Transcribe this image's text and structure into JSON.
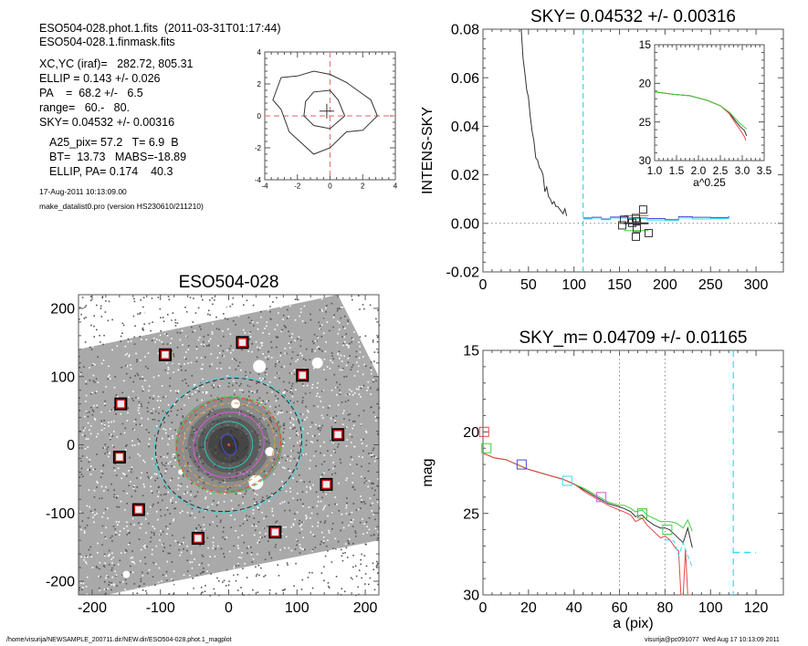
{
  "header": {
    "lines": [
      "ESO504-028.phot.1.fits  (2011-03-31T01:17:44)",
      "ESO504-028.1.finmask.fits"
    ],
    "params": [
      "XC,YC (iraf)=   282.72, 805.31",
      "ELLIP = 0.143 +/- 0.026",
      "PA    =  68.2 +/-   6.5",
      "range=   60.-   80.",
      "SKY= 0.04532 +/- 0.00316"
    ],
    "results": [
      "A25_pix= 57.2   T= 6.9  B",
      "BT=  13.73   MABS=-18.89",
      "ELLIP, PA= 0.174    40.3"
    ],
    "date": "17-Aug-2011 10:13:09.00",
    "program": "make_datalist0.pro (version HS230610/211210)"
  },
  "footer": {
    "path": "/home/visurija/NEWSAMPLE_200711.dir/NEW.dir/ESO504-028.phot.1_magplot",
    "user_stamp": "visurija@pc091077  Wed Aug 17 10:13:09 2011"
  },
  "colors": {
    "axis": "#555555",
    "black_line": "#333333",
    "red": "#e8444a",
    "green": "#3fd13f",
    "cyan": "#33dde8",
    "blue": "#4a4ad8",
    "magenta": "#d858d8",
    "orange": "#e0a040",
    "pink_dash": "#e88080",
    "teal": "#30c0b0",
    "dotted": "#888888",
    "square_red": "#cc1111"
  },
  "chart_data": [
    {
      "id": "center-contours",
      "type": "line",
      "title": "",
      "xlabel": "",
      "ylabel": "",
      "xlim": [
        -4,
        4
      ],
      "ylim": [
        -4,
        4
      ],
      "xticks": [
        -4,
        -2,
        0,
        2,
        4
      ],
      "yticks": [
        -4,
        -2,
        0,
        2,
        4
      ],
      "xtick_labels": [
        "-4",
        "-2",
        "0",
        "2",
        "4"
      ],
      "ytick_labels": [
        "-4",
        "-2",
        "0",
        "2",
        "4"
      ],
      "contours": [
        {
          "name": "outer",
          "points": [
            [
              -3.0,
              2.4
            ],
            [
              -2.0,
              2.5
            ],
            [
              -1.0,
              2.8
            ],
            [
              0.0,
              2.6
            ],
            [
              1.0,
              2.1
            ],
            [
              2.5,
              1.0
            ],
            [
              2.9,
              0.0
            ],
            [
              2.0,
              -0.9
            ],
            [
              1.0,
              -1.0
            ],
            [
              0.0,
              -2.0
            ],
            [
              -1.0,
              -2.4
            ],
            [
              -2.5,
              -1.0
            ],
            [
              -3.0,
              0.4
            ],
            [
              -3.5,
              1.0
            ],
            [
              -3.0,
              2.4
            ]
          ]
        },
        {
          "name": "inner",
          "points": [
            [
              -1.5,
              0.9
            ],
            [
              -1.0,
              1.5
            ],
            [
              0.0,
              1.6
            ],
            [
              0.5,
              1.0
            ],
            [
              0.9,
              0.0
            ],
            [
              0.0,
              -0.8
            ],
            [
              -1.0,
              -0.6
            ],
            [
              -1.6,
              0.0
            ],
            [
              -1.5,
              0.9
            ]
          ]
        }
      ],
      "crosshair": {
        "x": 0.0,
        "y": 0.0
      },
      "center_marker": {
        "x": -0.2,
        "y": 0.3
      }
    },
    {
      "id": "sky-profile",
      "type": "line",
      "title": "SKY= 0.04532 +/- 0.00316",
      "xlabel": "",
      "ylabel": "INTENS-SKY",
      "xlim": [
        0,
        330
      ],
      "ylim": [
        -0.02,
        0.08
      ],
      "xticks": [
        0,
        50,
        100,
        150,
        200,
        250,
        300
      ],
      "xtick_labels": [
        "0",
        "50",
        "100",
        "150",
        "200",
        "250",
        "300"
      ],
      "yticks": [
        -0.02,
        0.0,
        0.02,
        0.04,
        0.06,
        0.08
      ],
      "ytick_labels": [
        "-0.02",
        "0.00",
        "0.02",
        "0.04",
        "0.06",
        "0.08"
      ],
      "sky_radius_line": 110,
      "series": [
        {
          "name": "profile",
          "color": "black_line",
          "x": [
            42,
            44,
            46,
            48,
            50,
            52,
            54,
            56,
            58,
            60,
            62,
            64,
            66,
            68,
            70,
            72,
            74,
            76,
            78,
            80,
            82,
            84,
            86,
            88,
            90,
            92
          ],
          "y": [
            0.08,
            0.068,
            0.062,
            0.055,
            0.052,
            0.044,
            0.038,
            0.034,
            0.027,
            0.026,
            0.023,
            0.022,
            0.02,
            0.013,
            0.015,
            0.011,
            0.01,
            0.008,
            0.009,
            0.007,
            0.007,
            0.006,
            0.005,
            0.004,
            0.006,
            0.003
          ]
        },
        {
          "name": "sky-blue",
          "color": "blue",
          "x": [
            110,
            120,
            130,
            140,
            160,
            180,
            200,
            215,
            230,
            250,
            270
          ],
          "y": [
            0.0022,
            0.0025,
            0.0018,
            0.0026,
            0.0022,
            0.002,
            0.0015,
            0.0028,
            0.0025,
            0.0024,
            0.003
          ]
        },
        {
          "name": "sky-cyan",
          "color": "cyan",
          "x": [
            110,
            120,
            130,
            140,
            160,
            180,
            200,
            215,
            230,
            250,
            270
          ],
          "y": [
            0.0018,
            0.0022,
            0.0015,
            0.0022,
            0.002,
            0.0014,
            0.0012,
            0.0022,
            0.0018,
            0.002,
            0.0026
          ]
        }
      ],
      "sky_boxes": [
        [
          155,
          0.0015
        ],
        [
          153,
          -0.0008
        ],
        [
          164,
          0.0002
        ],
        [
          168,
          0.0022
        ],
        [
          169,
          0.0008
        ],
        [
          169,
          -0.002
        ],
        [
          176,
          0.0057
        ],
        [
          168,
          -0.0055
        ],
        [
          182,
          -0.004
        ]
      ],
      "error_lines": [
        {
          "color": "red",
          "x": [
            155,
            182
          ],
          "y": 0.0032
        },
        {
          "color": "black_line",
          "x": [
            155,
            182
          ],
          "y": 0.0
        },
        {
          "color": "green",
          "x": [
            155,
            182
          ],
          "y": -0.003
        }
      ]
    },
    {
      "id": "inset-profile",
      "type": "line",
      "title": "",
      "xlabel": "a^0.25",
      "ylabel": "",
      "xlim": [
        1.0,
        3.5
      ],
      "ylim": [
        30,
        15
      ],
      "xticks": [
        1.0,
        1.5,
        2.0,
        2.5,
        3.0,
        3.5
      ],
      "xtick_labels": [
        "1.0",
        "1.5",
        "2.0",
        "2.5",
        "3.0",
        "3.5"
      ],
      "yticks": [
        15,
        20,
        25,
        30
      ],
      "ytick_labels": [
        "15",
        "20",
        "25",
        "30"
      ],
      "series": [
        {
          "name": "black",
          "color": "black_line",
          "x": [
            1.0,
            1.4,
            1.8,
            2.2,
            2.5,
            2.7,
            2.85,
            2.95,
            3.05,
            3.1
          ],
          "y": [
            21.1,
            21.4,
            21.6,
            22.2,
            22.9,
            23.8,
            24.9,
            25.6,
            26.1,
            26.8
          ]
        },
        {
          "name": "red",
          "color": "red",
          "x": [
            1.0,
            1.4,
            1.8,
            2.2,
            2.5,
            2.7,
            2.85,
            2.95,
            3.05,
            3.08
          ],
          "y": [
            21.1,
            21.4,
            21.6,
            22.2,
            22.9,
            23.9,
            25.2,
            26.0,
            26.9,
            27.4
          ]
        },
        {
          "name": "green",
          "color": "green",
          "x": [
            1.0,
            1.4,
            1.8,
            2.2,
            2.5,
            2.7,
            2.85,
            2.95,
            3.05,
            3.1
          ],
          "y": [
            21.1,
            21.4,
            21.6,
            22.2,
            22.9,
            23.7,
            24.6,
            25.2,
            25.7,
            25.9
          ]
        }
      ]
    },
    {
      "id": "image",
      "type": "heatmap",
      "title": "ESO504-028",
      "xlabel": "",
      "ylabel": "",
      "xlim": [
        -220,
        220
      ],
      "ylim": [
        -220,
        220
      ],
      "xticks": [
        -200,
        -100,
        0,
        100,
        200
      ],
      "xtick_labels": [
        "-200",
        "-100",
        "0",
        "100",
        "200"
      ],
      "yticks": [
        -200,
        -100,
        0,
        100,
        200
      ],
      "ytick_labels": [
        "-200",
        "-100",
        "0",
        "100",
        "200"
      ],
      "sky_boxes": [
        [
          20,
          150
        ],
        [
          -93,
          132
        ],
        [
          108,
          102
        ],
        [
          -158,
          60
        ],
        [
          160,
          15
        ],
        [
          -160,
          -18
        ],
        [
          143,
          -58
        ],
        [
          -132,
          -95
        ],
        [
          68,
          -128
        ],
        [
          -45,
          -137
        ]
      ],
      "ellipses": [
        {
          "color": "cyan",
          "a": 110,
          "b": 98,
          "dashed": true
        },
        {
          "color": "black_line",
          "a": 108,
          "b": 96,
          "dashed": true
        },
        {
          "color": "green",
          "a": 78,
          "b": 70,
          "dashed": true
        },
        {
          "color": "red",
          "a": 77,
          "b": 68,
          "dashed": true
        },
        {
          "color": "orange",
          "a": 68,
          "b": 60,
          "dashed": true
        },
        {
          "color": "magenta",
          "a": 52,
          "b": 47,
          "dashed": false
        },
        {
          "color": "teal",
          "a": 35,
          "b": 34,
          "dashed": false
        },
        {
          "color": "blue",
          "a": 10,
          "b": 16,
          "dashed": false
        }
      ]
    },
    {
      "id": "mag-profile",
      "type": "line",
      "title": "SKY_m=  0.04709 +/- 0.01165",
      "xlabel": "a (pix)",
      "ylabel": "mag",
      "xlim": [
        0,
        132
      ],
      "ylim": [
        30,
        15
      ],
      "xticks": [
        0,
        20,
        40,
        60,
        80,
        100,
        120
      ],
      "xtick_labels": [
        "0",
        "20",
        "40",
        "60",
        "80",
        "100",
        "120"
      ],
      "yticks": [
        15,
        20,
        25,
        30
      ],
      "ytick_labels": [
        "15",
        "20",
        "25",
        "30"
      ],
      "vlines_dotted": [
        60,
        80
      ],
      "vline_dashed": 110,
      "hsegment_dashed": {
        "x": [
          110,
          120
        ],
        "y": 27.4
      },
      "series": [
        {
          "name": "black",
          "color": "black_line",
          "x": [
            0,
            5,
            10,
            15,
            20,
            25,
            30,
            35,
            40,
            45,
            50,
            55,
            60,
            62,
            65,
            67,
            70,
            72,
            75,
            78,
            80,
            82,
            85,
            88,
            90,
            92
          ],
          "y": [
            21.3,
            21.6,
            21.7,
            22.0,
            22.3,
            22.5,
            22.7,
            22.9,
            23.2,
            23.6,
            24.0,
            24.4,
            24.6,
            24.7,
            24.9,
            25.2,
            25.1,
            25.4,
            25.7,
            25.9,
            25.9,
            26.0,
            26.4,
            26.8,
            25.9,
            27.1
          ]
        },
        {
          "name": "green",
          "color": "green",
          "x": [
            0,
            5,
            10,
            15,
            20,
            25,
            30,
            35,
            40,
            45,
            50,
            55,
            60,
            62,
            65,
            67,
            70,
            72,
            75,
            78,
            80,
            82,
            85,
            88,
            90,
            92
          ],
          "y": [
            21.3,
            21.6,
            21.7,
            22.0,
            22.3,
            22.5,
            22.7,
            22.9,
            23.2,
            23.5,
            23.9,
            24.3,
            24.5,
            24.5,
            24.7,
            24.9,
            24.8,
            25.1,
            25.3,
            25.5,
            25.5,
            25.5,
            25.6,
            25.9,
            25.4,
            26.1
          ]
        },
        {
          "name": "red",
          "color": "red",
          "x": [
            0,
            5,
            10,
            15,
            20,
            25,
            30,
            35,
            40,
            45,
            50,
            55,
            60,
            62,
            65,
            67,
            70,
            72,
            75,
            78,
            80,
            82,
            85,
            86,
            87,
            88,
            89,
            90,
            91
          ],
          "y": [
            21.3,
            21.6,
            21.7,
            22.0,
            22.3,
            22.5,
            22.7,
            22.9,
            23.2,
            23.7,
            24.1,
            24.5,
            24.8,
            24.9,
            25.1,
            25.5,
            25.3,
            25.7,
            26.1,
            26.5,
            26.4,
            26.6,
            27.2,
            27.3,
            30,
            30,
            27.2,
            30,
            30
          ]
        },
        {
          "name": "cyan-dashed",
          "color": "cyan",
          "x": [
            80,
            84,
            86,
            88,
            90,
            92
          ],
          "y": [
            26.6,
            26.7,
            27.6,
            26.8,
            27.6,
            28.3
          ]
        }
      ],
      "markers": [
        {
          "x": 0.5,
          "y": 20.0,
          "color": "red"
        },
        {
          "x": 1.5,
          "y": 21.0,
          "color": "green"
        },
        {
          "x": 17,
          "y": 22.0,
          "color": "blue"
        },
        {
          "x": 37,
          "y": 23.0,
          "color": "cyan"
        },
        {
          "x": 52,
          "y": 24.0,
          "color": "magenta"
        },
        {
          "x": 70,
          "y": 25.0,
          "color": "orange"
        },
        {
          "x": 70,
          "y": 25.0,
          "color": "green"
        },
        {
          "x": 81,
          "y": 26.0,
          "color": "green"
        }
      ]
    }
  ]
}
